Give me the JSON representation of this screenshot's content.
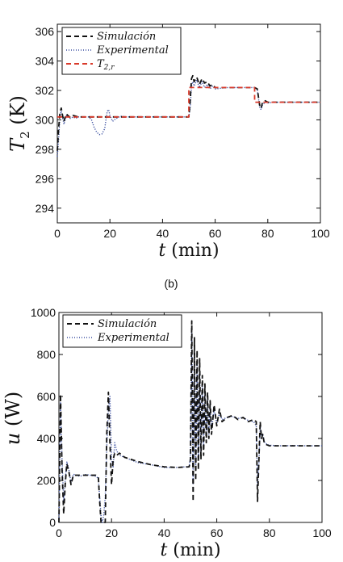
{
  "caption": "(b)",
  "chart_data": [
    {
      "type": "line",
      "ylabel": "T_2 (K)",
      "xlabel": "t (min)",
      "xlim": [
        0,
        100
      ],
      "ylim": [
        293,
        306.5
      ],
      "xticks": [
        "0",
        "20",
        "40",
        "60",
        "80",
        "100"
      ],
      "yticks": [
        "294",
        "296",
        "298",
        "300",
        "302",
        "304",
        "306"
      ],
      "legend_position": "top-left",
      "series": [
        {
          "name": "Simulación",
          "style": "dashed",
          "color": "#111111",
          "x": [
            0,
            0.5,
            1,
            1.5,
            2,
            2.5,
            3,
            3.5,
            4,
            5,
            6,
            7,
            8,
            10,
            12,
            14,
            15,
            16,
            17,
            18,
            19,
            20,
            22,
            25,
            30,
            40,
            49,
            50,
            50.5,
            51,
            51.5,
            52,
            53,
            54,
            55,
            56,
            57,
            58,
            59,
            60,
            62,
            65,
            70,
            75,
            76,
            76.5,
            77,
            77.5,
            78,
            79,
            80,
            82,
            85,
            90,
            95,
            100
          ],
          "y": [
            297.9,
            299.4,
            300.5,
            300.8,
            300.3,
            299.9,
            300.2,
            300.4,
            300.3,
            300.15,
            300.3,
            300.25,
            300.2,
            300.2,
            300.2,
            300.2,
            300.2,
            300.2,
            300.2,
            300.2,
            300.2,
            300.2,
            300.2,
            300.2,
            300.2,
            300.2,
            300.2,
            300.2,
            301.3,
            302.8,
            303.0,
            302.6,
            302.9,
            302.4,
            302.8,
            302.5,
            302.6,
            302.3,
            302.4,
            302.2,
            302.2,
            302.2,
            302.2,
            302.2,
            302.1,
            301.5,
            300.9,
            300.8,
            301.2,
            301.3,
            301.2,
            301.2,
            301.2,
            301.2,
            301.2,
            301.2
          ]
        },
        {
          "name": "Experimental",
          "style": "dotted",
          "color": "#3a4fa0",
          "x": [
            0,
            0.5,
            1,
            1.5,
            2,
            2.5,
            3,
            3.5,
            4,
            5,
            6,
            7,
            8,
            10,
            12,
            13,
            14,
            15,
            16,
            17,
            18,
            18.5,
            19,
            19.5,
            20,
            21,
            22,
            24,
            26,
            30,
            40,
            49,
            50,
            50.5,
            51,
            51.5,
            52,
            53,
            54,
            55,
            56,
            57,
            58,
            59,
            60,
            62,
            65,
            70,
            75,
            76,
            76.5,
            77,
            77.5,
            78,
            79,
            80,
            82,
            85,
            90,
            95,
            100
          ],
          "y": [
            297.5,
            298.7,
            300.2,
            300.6,
            300.2,
            299.7,
            300.0,
            300.3,
            300.2,
            300.1,
            300.2,
            300.1,
            300.2,
            300.2,
            300.2,
            300.0,
            299.5,
            299.15,
            299.0,
            299.05,
            299.4,
            300.0,
            300.6,
            300.7,
            300.3,
            299.9,
            300.05,
            300.25,
            300.2,
            300.2,
            300.2,
            300.2,
            300.2,
            300.8,
            302.3,
            302.6,
            302.3,
            302.7,
            302.2,
            302.6,
            302.2,
            302.4,
            302.1,
            302.3,
            302.1,
            302.15,
            302.2,
            302.2,
            302.2,
            302.1,
            301.4,
            300.8,
            300.7,
            301.0,
            301.2,
            301.15,
            301.2,
            301.2,
            301.2,
            301.2,
            301.2
          ]
        },
        {
          "name": "T_{2,r}",
          "style": "dashed",
          "color": "#d93a2b",
          "x": [
            0,
            50,
            50,
            75,
            75,
            100
          ],
          "y": [
            300.2,
            300.2,
            302.2,
            302.2,
            301.2,
            301.2
          ]
        }
      ]
    },
    {
      "type": "line",
      "ylabel": "u (W)",
      "xlabel": "t (min)",
      "xlim": [
        0,
        100
      ],
      "ylim": [
        0,
        1000
      ],
      "xticks": [
        "0",
        "20",
        "40",
        "60",
        "80",
        "100"
      ],
      "yticks": [
        "0",
        "200",
        "400",
        "600",
        "800",
        "1000"
      ],
      "legend_position": "top-left",
      "series": [
        {
          "name": "Simulación",
          "style": "dashed",
          "color": "#111111",
          "x": [
            0,
            0.6,
            1.2,
            1.8,
            2.4,
            3,
            3.8,
            4.6,
            5.5,
            6.5,
            8,
            10,
            12,
            14,
            15,
            15.5,
            16,
            16.5,
            17,
            17.6,
            18.2,
            18.8,
            19.4,
            20,
            20.6,
            21.2,
            22,
            23,
            25,
            30,
            35,
            40,
            45,
            49.5,
            50,
            50.5,
            51,
            51.5,
            52,
            52.5,
            53,
            53.5,
            54,
            54.5,
            55,
            55.5,
            56,
            56.5,
            57,
            57.5,
            58,
            59,
            60,
            61,
            62,
            64,
            66,
            68,
            70,
            72,
            74,
            75,
            75.5,
            76,
            76.5,
            77,
            77.5,
            78,
            79,
            80,
            82,
            85,
            90,
            95,
            100
          ],
          "y": [
            0,
            610,
            250,
            40,
            180,
            280,
            240,
            180,
            225,
            225,
            225,
            225,
            225,
            225,
            215,
            100,
            0,
            0,
            0,
            0,
            420,
            620,
            380,
            180,
            300,
            330,
            320,
            330,
            310,
            290,
            275,
            265,
            262,
            265,
            300,
            960,
            100,
            880,
            200,
            820,
            250,
            780,
            300,
            700,
            320,
            660,
            380,
            620,
            400,
            580,
            420,
            560,
            460,
            540,
            480,
            500,
            510,
            490,
            500,
            480,
            490,
            480,
            100,
            300,
            480,
            400,
            420,
            380,
            370,
            365,
            365,
            365,
            365,
            365,
            365
          ]
        },
        {
          "name": "Experimental",
          "style": "dotted",
          "color": "#3a4fa0",
          "x": [
            0,
            0.6,
            1.2,
            1.8,
            2.4,
            3,
            3.8,
            4.6,
            5.5,
            6.5,
            8,
            10,
            12,
            14,
            15,
            15.5,
            16,
            16.5,
            17,
            17.6,
            18.2,
            18.8,
            19.4,
            20,
            20.6,
            21.2,
            22,
            23,
            25,
            30,
            35,
            40,
            45,
            49.5,
            50,
            50.5,
            51,
            51.5,
            52,
            52.5,
            53,
            53.5,
            54,
            54.5,
            55,
            55.5,
            56,
            56.5,
            57,
            57.5,
            58,
            59,
            60,
            61,
            62,
            64,
            66,
            68,
            70,
            72,
            74,
            75,
            75.5,
            76,
            76.5,
            77,
            77.5,
            78,
            79,
            80,
            82,
            85,
            90,
            95,
            100
          ],
          "y": [
            0,
            580,
            300,
            100,
            200,
            290,
            250,
            190,
            230,
            225,
            220,
            228,
            225,
            220,
            210,
            120,
            30,
            0,
            30,
            120,
            360,
            540,
            600,
            300,
            260,
            380,
            340,
            320,
            310,
            285,
            275,
            262,
            262,
            266,
            310,
            900,
            180,
            820,
            260,
            760,
            300,
            720,
            340,
            660,
            360,
            620,
            400,
            580,
            420,
            560,
            440,
            540,
            470,
            520,
            490,
            500,
            505,
            495,
            500,
            485,
            480,
            460,
            180,
            280,
            460,
            410,
            420,
            385,
            372,
            368,
            366,
            365,
            366,
            365,
            365
          ]
        }
      ]
    }
  ]
}
